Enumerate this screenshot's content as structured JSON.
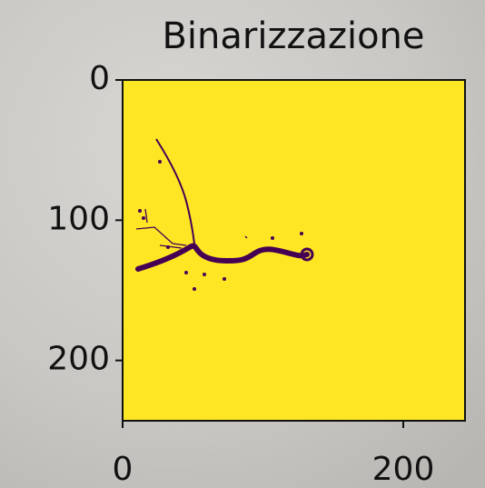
{
  "chart_data": {
    "type": "image",
    "title": "Binarizzazione",
    "xlim": [
      0,
      244
    ],
    "ylim": [
      243,
      0
    ],
    "xticks": [
      0,
      200
    ],
    "yticks": [
      0,
      100,
      200
    ],
    "colormap": [
      "#440154",
      "#fde725"
    ]
  }
}
